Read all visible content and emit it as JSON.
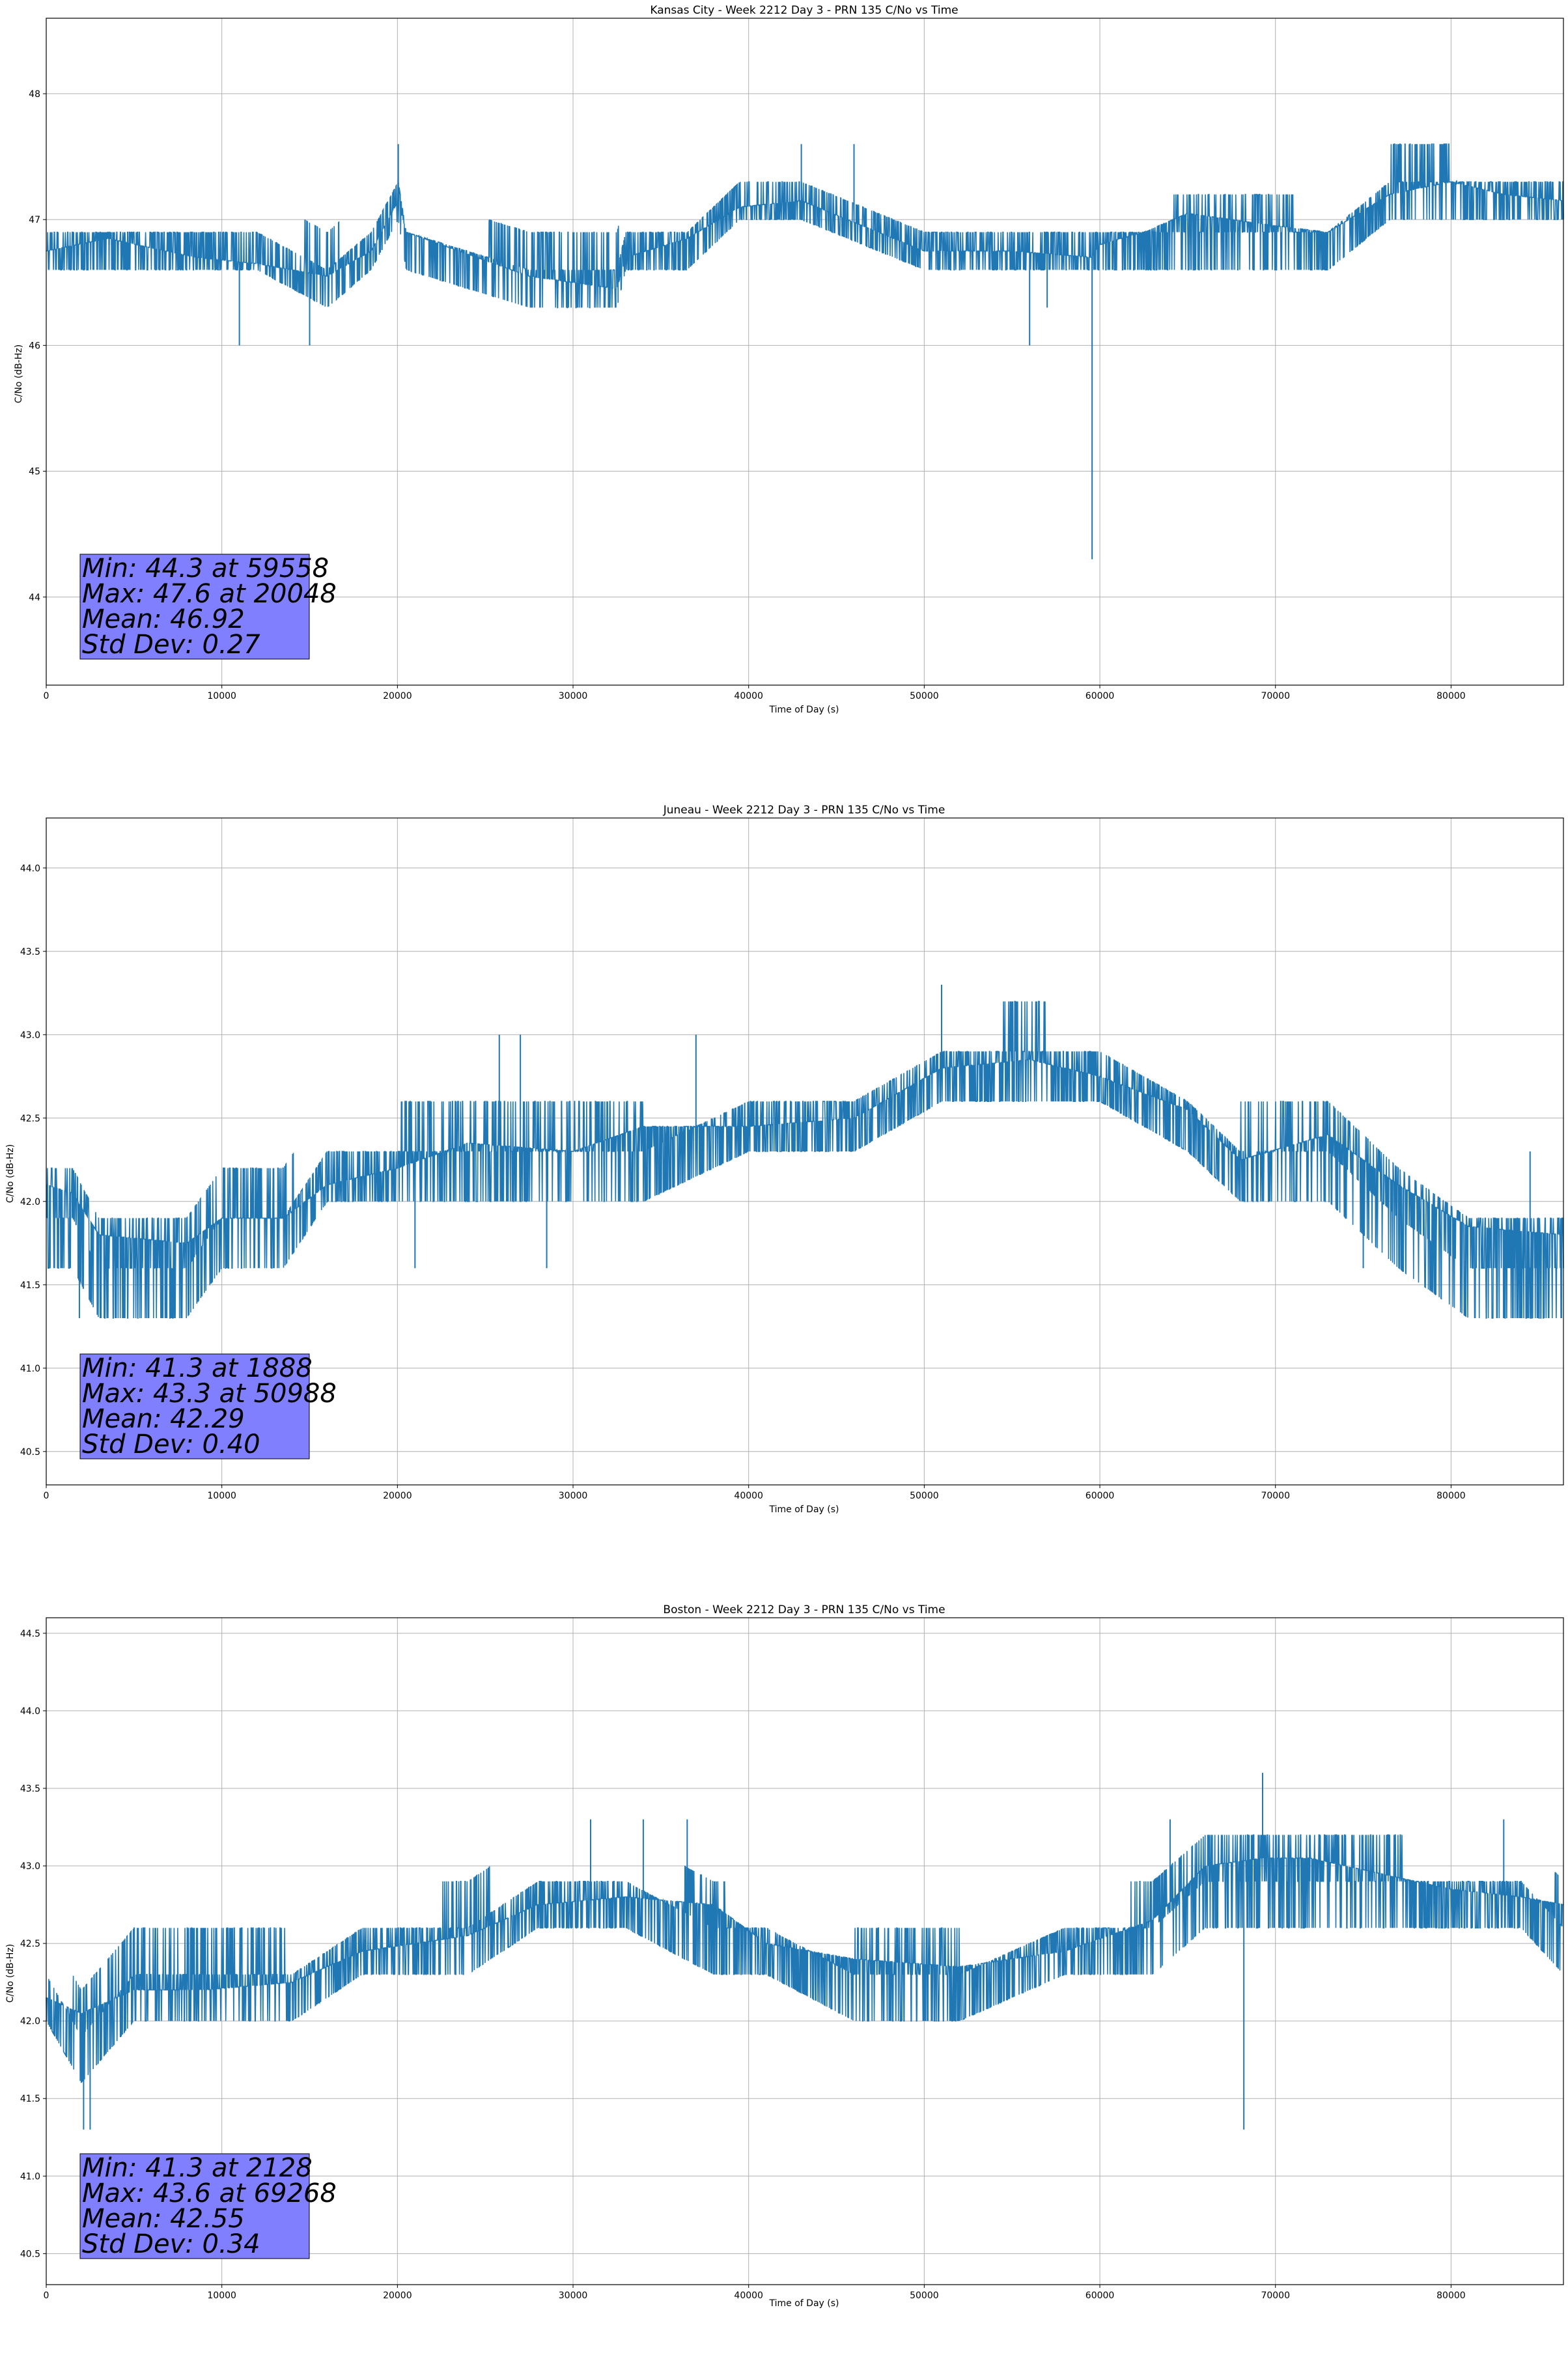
{
  "chart_data": [
    {
      "type": "line",
      "title": "Kansas City - Week 2212 Day 3 - PRN 135 C/No vs Time",
      "xlabel": "Time of Day (s)",
      "ylabel": "C/No (dB-Hz)",
      "xlim": [
        0,
        86400
      ],
      "ylim": [
        43.3,
        48.6
      ],
      "xticks": [
        0,
        10000,
        20000,
        30000,
        40000,
        50000,
        60000,
        70000,
        80000
      ],
      "yticks": [
        44,
        45,
        46,
        47,
        48
      ],
      "ytick_decimals": 0,
      "grid": true,
      "color": "#1f77b4",
      "seed": 11,
      "series": [
        {
          "x": [
            0,
            3500,
            8500,
            12000,
            16000,
            18500,
            20048,
            20500,
            27500,
            32500,
            33000,
            36500,
            39500,
            43000,
            50000,
            55000,
            59558,
            60000,
            62500,
            65000,
            70000,
            73000,
            76500,
            80000,
            83000,
            86400
          ],
          "y": [
            46.75,
            46.85,
            46.7,
            46.65,
            46.55,
            46.75,
            47.15,
            46.9,
            46.55,
            46.45,
            46.7,
            46.85,
            47.1,
            47.15,
            46.75,
            46.75,
            46.7,
            46.8,
            46.9,
            47.05,
            46.95,
            46.9,
            47.2,
            47.3,
            47.2,
            47.15
          ],
          "range_low": [
            46.6,
            46.6,
            46.6,
            46.6,
            46.3,
            46.6,
            47.0,
            46.6,
            46.3,
            46.3,
            46.6,
            46.6,
            47.0,
            47.0,
            46.6,
            46.6,
            46.6,
            46.6,
            46.6,
            46.6,
            46.6,
            46.6,
            47.0,
            47.0,
            47.0,
            47.0
          ],
          "range_high": [
            47.0,
            47.0,
            47.0,
            47.0,
            47.0,
            47.0,
            47.3,
            47.0,
            47.0,
            47.0,
            47.0,
            47.0,
            47.3,
            47.3,
            47.0,
            47.0,
            47.0,
            47.0,
            47.0,
            47.3,
            47.3,
            47.0,
            47.6,
            47.6,
            47.3,
            47.3
          ],
          "spikes": [
            {
              "x": 11000,
              "y": 46.0
            },
            {
              "x": 15000,
              "y": 46.0
            },
            {
              "x": 20048,
              "y": 47.6
            },
            {
              "x": 56000,
              "y": 46.0
            },
            {
              "x": 59558,
              "y": 44.3
            },
            {
              "x": 57000,
              "y": 46.3
            },
            {
              "x": 43000,
              "y": 47.6
            },
            {
              "x": 46000,
              "y": 47.6
            }
          ]
        }
      ],
      "stats": [
        "Min: 44.3 at 59558",
        "Max: 47.6 at 20048",
        "Mean: 46.92",
        "Std Dev: 0.27"
      ]
    },
    {
      "type": "line",
      "title": "Juneau - Week 2212 Day 3 - PRN 135 C/No vs Time",
      "xlabel": "Time of Day (s)",
      "ylabel": "C/No (dB-Hz)",
      "xlim": [
        0,
        86400
      ],
      "ylim": [
        40.3,
        44.3
      ],
      "xticks": [
        0,
        10000,
        20000,
        30000,
        40000,
        50000,
        60000,
        70000,
        80000
      ],
      "yticks": [
        40.5,
        41.0,
        41.5,
        42.0,
        42.5,
        43.0,
        43.5,
        44.0
      ],
      "ytick_decimals": 1,
      "grid": true,
      "color": "#1f77b4",
      "seed": 23,
      "series": [
        {
          "x": [
            0,
            1500,
            3000,
            8000,
            10000,
            13500,
            16000,
            20000,
            24000,
            30000,
            34000,
            40000,
            46000,
            51000,
            56000,
            60000,
            65000,
            68000,
            73000,
            77000,
            81000,
            86400
          ],
          "y": [
            42.1,
            42.05,
            41.8,
            41.75,
            41.9,
            41.9,
            42.1,
            42.2,
            42.35,
            42.3,
            42.45,
            42.45,
            42.5,
            42.8,
            42.85,
            42.75,
            42.55,
            42.25,
            42.4,
            42.1,
            41.85,
            41.8
          ],
          "range_low": [
            41.6,
            41.6,
            41.3,
            41.3,
            41.6,
            41.6,
            42.0,
            42.0,
            42.0,
            42.0,
            42.0,
            42.3,
            42.3,
            42.6,
            42.6,
            42.6,
            42.3,
            42.0,
            42.0,
            41.6,
            41.3,
            41.3
          ],
          "range_high": [
            42.3,
            42.3,
            42.0,
            42.0,
            42.3,
            42.3,
            42.3,
            42.6,
            42.6,
            42.6,
            42.6,
            42.6,
            42.6,
            43.0,
            43.3,
            43.0,
            42.6,
            42.6,
            42.6,
            42.3,
            42.0,
            42.0
          ],
          "spikes": [
            {
              "x": 1888,
              "y": 41.3
            },
            {
              "x": 50988,
              "y": 43.3
            },
            {
              "x": 25800,
              "y": 43.0
            },
            {
              "x": 27000,
              "y": 43.0
            },
            {
              "x": 37000,
              "y": 43.0
            },
            {
              "x": 28500,
              "y": 41.6
            },
            {
              "x": 21000,
              "y": 41.6
            },
            {
              "x": 75000,
              "y": 41.6
            },
            {
              "x": 84500,
              "y": 42.3
            }
          ]
        }
      ],
      "stats": [
        "Min: 41.3 at 1888",
        "Max: 43.3 at 50988",
        "Mean: 42.29",
        "Std Dev: 0.40"
      ]
    },
    {
      "type": "line",
      "title": "Boston - Week 2212 Day 3 - PRN 135 C/No vs Time",
      "xlabel": "Time of Day (s)",
      "ylabel": "C/No (dB-Hz)",
      "xlim": [
        0,
        86400
      ],
      "ylim": [
        40.3,
        44.6
      ],
      "xticks": [
        0,
        10000,
        20000,
        30000,
        40000,
        50000,
        60000,
        70000,
        80000
      ],
      "yticks": [
        40.5,
        41.0,
        41.5,
        42.0,
        42.5,
        43.0,
        43.5,
        44.0,
        44.5
      ],
      "ytick_decimals": 1,
      "grid": true,
      "color": "#1f77b4",
      "seed": 37,
      "series": [
        {
          "x": [
            0,
            2000,
            5000,
            9000,
            14000,
            18000,
            24000,
            28000,
            33000,
            38000,
            41000,
            46000,
            52000,
            58000,
            63000,
            66000,
            69268,
            72000,
            76000,
            80000,
            84000,
            86400
          ],
          "y": [
            42.15,
            42.05,
            42.2,
            42.2,
            42.25,
            42.45,
            42.55,
            42.75,
            42.8,
            42.75,
            42.5,
            42.4,
            42.35,
            42.45,
            42.65,
            43.0,
            43.05,
            43.05,
            42.95,
            42.85,
            42.8,
            42.75
          ],
          "range_low": [
            42.0,
            41.6,
            42.0,
            42.0,
            42.0,
            42.3,
            42.3,
            42.6,
            42.6,
            42.3,
            42.3,
            42.0,
            42.0,
            42.3,
            42.3,
            42.6,
            42.6,
            42.6,
            42.6,
            42.6,
            42.6,
            42.3
          ],
          "range_high": [
            42.3,
            42.3,
            42.6,
            42.6,
            42.6,
            42.6,
            43.0,
            43.0,
            43.0,
            43.0,
            42.6,
            42.6,
            42.6,
            42.6,
            43.0,
            43.3,
            43.3,
            43.3,
            43.3,
            43.0,
            43.0,
            43.0
          ],
          "spikes": [
            {
              "x": 2128,
              "y": 41.3
            },
            {
              "x": 2500,
              "y": 41.3
            },
            {
              "x": 69268,
              "y": 43.6
            },
            {
              "x": 68200,
              "y": 41.3
            },
            {
              "x": 31000,
              "y": 43.3
            },
            {
              "x": 34000,
              "y": 43.3
            },
            {
              "x": 36500,
              "y": 43.3
            },
            {
              "x": 64000,
              "y": 43.3
            },
            {
              "x": 83000,
              "y": 43.3
            }
          ]
        }
      ],
      "stats": [
        "Min: 41.3 at 2128",
        "Max: 43.6 at 69268",
        "Mean: 42.55",
        "Std Dev: 0.34"
      ]
    }
  ]
}
